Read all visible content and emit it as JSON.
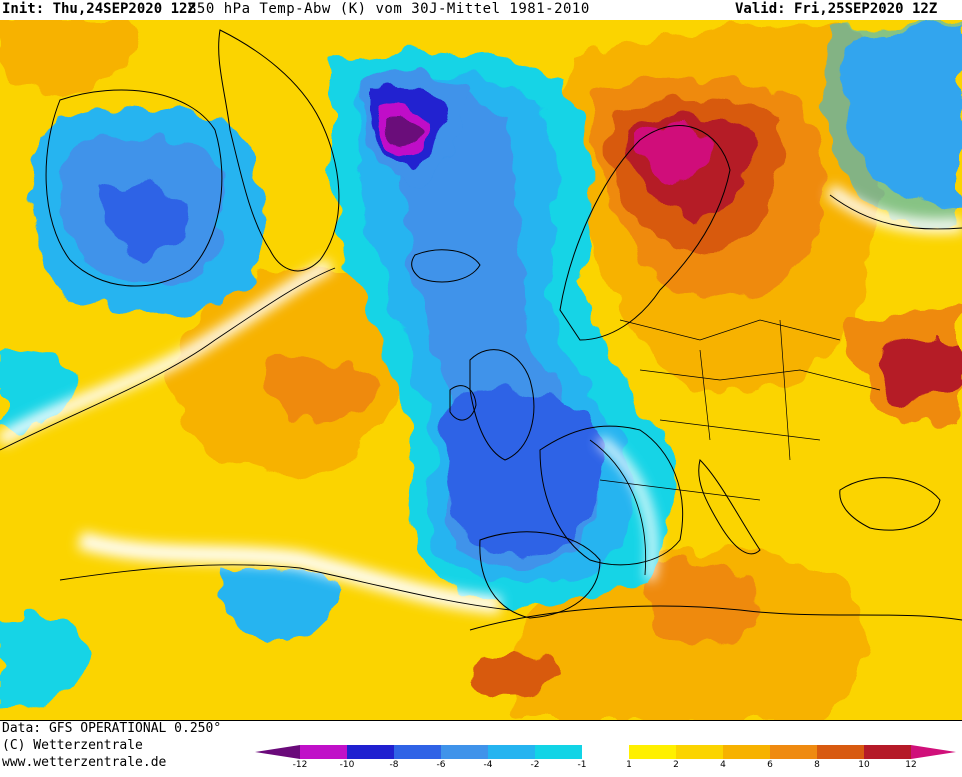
{
  "header": {
    "init": "Init: Thu,24SEP2020 12Z",
    "title": "850 hPa Temp-Abw (K) vom 30J-Mittel 1981-2010",
    "valid": "Valid: Fri,25SEP2020 12Z"
  },
  "footer": {
    "data_source": "Data: GFS OPERATIONAL 0.250°",
    "copyright": "(C) Wetterzentrale",
    "website": "www.wetterzentrale.de"
  },
  "colorbar": {
    "ticks": [
      "-12",
      "-10",
      "-8",
      "-6",
      "-4",
      "-2",
      "-1",
      "1",
      "2",
      "4",
      "6",
      "8",
      "10",
      "12"
    ],
    "colors": {
      "below_min": "#6a0a7a",
      "m12_m10": "#c010c8",
      "m10_m8": "#2020d0",
      "m8_m6": "#2f63e6",
      "m6_m4": "#3f93ea",
      "m4_m2": "#25b4f0",
      "m2_m1": "#12d4e6",
      "m1_p1": "#ffffff",
      "p1_p2": "#fff000",
      "p2_p4": "#fbd400",
      "p4_p6": "#f7b200",
      "p6_p8": "#ef8a10",
      "p8_p10": "#d85a10",
      "p10_p12": "#b51a28",
      "above_max": "#d0107a"
    }
  }
}
